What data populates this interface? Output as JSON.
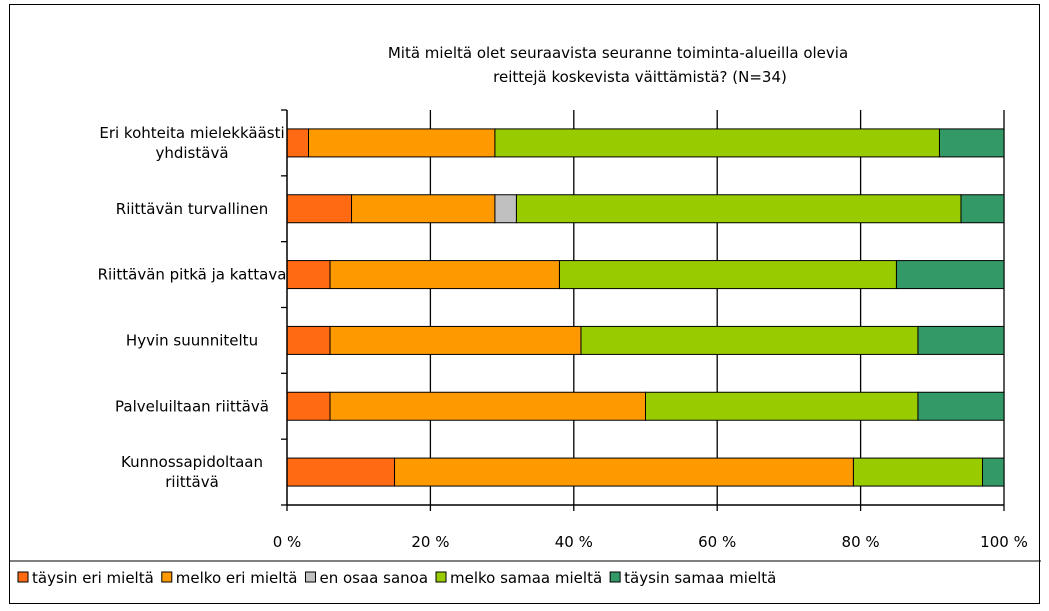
{
  "chart_data": {
    "type": "bar",
    "orientation": "horizontal",
    "stacked": "percent",
    "title_lines": [
      "Mitä mieltä olet seuraavista seuranne toiminta-alueilla olevia",
      "reittejä koskevista väittämistä? (N=34)"
    ],
    "categories": [
      [
        "Eri kohteita mielekkäästi",
        "yhdistävä"
      ],
      [
        "Riittävän turvallinen"
      ],
      [
        "Riittävän pitkä ja kattava"
      ],
      [
        "Hyvin suunniteltu"
      ],
      [
        "Palveluiltaan riittävä"
      ],
      [
        "Kunnossapidoltaan",
        "riittävä"
      ]
    ],
    "series": [
      {
        "name": "täysin eri mieltä",
        "color": "#ff6a13",
        "values": [
          3,
          9,
          6,
          6,
          6,
          15
        ]
      },
      {
        "name": "melko eri mieltä",
        "color": "#ff9900",
        "values": [
          26,
          20,
          32,
          35,
          44,
          64
        ]
      },
      {
        "name": "en osaa sanoa",
        "color": "#c0c0c0",
        "values": [
          0,
          3,
          0,
          0,
          0,
          0
        ]
      },
      {
        "name": "melko samaa mieltä",
        "color": "#99cc00",
        "values": [
          62,
          62,
          47,
          47,
          38,
          18
        ]
      },
      {
        "name": "täysin samaa mieltä",
        "color": "#339966",
        "values": [
          9,
          6,
          15,
          12,
          12,
          3
        ]
      }
    ],
    "xlim": [
      0,
      100
    ],
    "xticks": [
      "0 %",
      "20 %",
      "40 %",
      "60 %",
      "80 %",
      "100 %"
    ],
    "xtick_values": [
      0,
      20,
      40,
      60,
      80,
      100
    ],
    "grid": true,
    "legend_position": "bottom"
  }
}
